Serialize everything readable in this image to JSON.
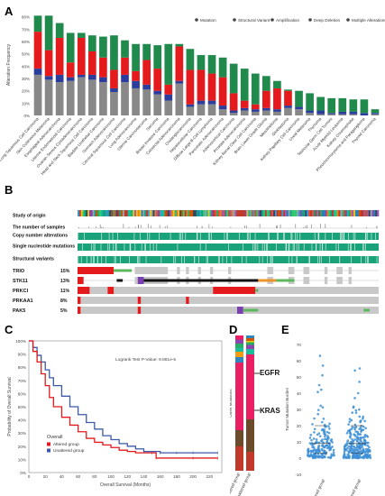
{
  "figure": {
    "panels": [
      "A",
      "B",
      "C",
      "D",
      "E"
    ]
  },
  "chart_data": [
    {
      "panel": "A",
      "type": "bar",
      "stacked": true,
      "ylabel": "Alteration Frequency",
      "yticks": [
        "0%",
        "10%",
        "20%",
        "30%",
        "40%",
        "50%",
        "60%",
        "70%",
        "80%"
      ],
      "ylim": [
        0,
        82
      ],
      "legend_position": "top-right",
      "legend": [
        {
          "name": "Mutation",
          "color": "#888888"
        },
        {
          "name": "Structural Variant",
          "color": "#8a6fa8"
        },
        {
          "name": "Amplification",
          "color": "#e41a1c"
        },
        {
          "name": "Deep Deletion",
          "color": "#2b3e9b"
        },
        {
          "name": "Multiple Alterations",
          "color": "#c9c9c9"
        }
      ],
      "colors": {
        "mutation": "#888888",
        "deletion": "#2b3e9b",
        "amplification": "#e41a1c",
        "multiple": "#1f8a4c"
      },
      "categories": [
        "Lung Squamous Cell Carcinoma",
        "Skin Cutaneous Melanoma",
        "Esophageal Adenocarcinoma",
        "Uterine Endometrioid Carcinoma",
        "Ovarian Serous Cystadenocarcinoma",
        "Head and Neck Squamous Cell Carcinoma",
        "Bladder Urothelial Carcinoma",
        "Stomach Adenocarcinoma",
        "Cervical Squamous Cell Carcinoma",
        "Lung Adenocarcinoma",
        "Uterine Carcinosarcoma",
        "Sarcoma",
        "Breast Invasive Carcinoma",
        "Colorectal Adenocarcinoma",
        "Cholangiocarcinoma",
        "Hepatocellular Carcinoma",
        "Diffuse Large B-Cell Lymphoma",
        "Pancreatic Adenocarcinoma",
        "Adrenocortical Carcinoma",
        "Prostate Adenocarcinoma",
        "Kidney Renal Clear Cell Carcinoma",
        "Brain Lower Grade Glioma",
        "Mesothelioma",
        "Glioblastoma",
        "Kidney Papillary Cell Carcinoma",
        "Uveal Melanoma",
        "Thymoma",
        "Testicular Germ Cell Tumors",
        "Acute Myeloid Leukemia",
        "Kidney Chromophobe",
        "Pheochromocytoma and Paraganglioma",
        "Thyroid Carcinoma"
      ],
      "series": [
        {
          "name": "Mutation",
          "values": [
            33,
            29,
            27,
            28,
            31,
            29,
            27,
            19,
            27,
            22,
            21,
            17,
            12,
            26,
            7,
            9,
            9,
            5,
            2,
            4,
            3,
            4,
            3,
            6,
            5,
            2,
            1,
            1,
            1,
            1,
            0,
            1
          ]
        },
        {
          "name": "Deep Deletion",
          "values": [
            5,
            3,
            6,
            3,
            2,
            4,
            4,
            3,
            6,
            6,
            4,
            3,
            5,
            2,
            2,
            3,
            3,
            3,
            2,
            2,
            2,
            2,
            2,
            2,
            2,
            2,
            3,
            1,
            2,
            2,
            2,
            1
          ]
        },
        {
          "name": "Amplification",
          "values": [
            30,
            21,
            30,
            12,
            30,
            19,
            16,
            15,
            14,
            8,
            20,
            18,
            8,
            28,
            28,
            25,
            22,
            23,
            14,
            6,
            4,
            14,
            17,
            12,
            0,
            0,
            0,
            0,
            0,
            0,
            0,
            0
          ]
        },
        {
          "name": "Multiple Alterations",
          "values": [
            13,
            28,
            12,
            24,
            4,
            13,
            17,
            28,
            14,
            22,
            13,
            19,
            33,
            2,
            17,
            12,
            15,
            16,
            24,
            26,
            25,
            12,
            6,
            1,
            13,
            14,
            11,
            12,
            11,
            10,
            11,
            3
          ]
        }
      ]
    },
    {
      "panel": "B",
      "type": "oncoprint",
      "tracks": [
        "Study of origin",
        "The number of samples",
        "Copy number alterations",
        "Single nucleotide mutations",
        "Structural variants"
      ],
      "genes": [
        {
          "name": "TRIO",
          "pct": "15%"
        },
        {
          "name": "STK11",
          "pct": "13%"
        },
        {
          "name": "PRKCI",
          "pct": "11%"
        },
        {
          "name": "PRKAA1",
          "pct": "8%"
        },
        {
          "name": "PAK5",
          "pct": "5%"
        }
      ],
      "colors": {
        "cna": "#1aa37a",
        "gray": "#c8c8c8",
        "amp": "#e41a1c",
        "mut": "#5cb85c",
        "trunc": "#111111",
        "fusion": "#7b3fb1",
        "orange": "#f0932b"
      }
    },
    {
      "panel": "C",
      "type": "line",
      "xlabel": "Overall Survival (Months)",
      "ylabel": "Probability of Overall Survival",
      "xticks": [
        "0",
        "20",
        "40",
        "60",
        "80",
        "100",
        "120",
        "140",
        "160",
        "180",
        "200",
        "220"
      ],
      "yticks": [
        "0%",
        "10%",
        "20%",
        "30%",
        "40%",
        "50%",
        "60%",
        "70%",
        "80%",
        "90%",
        "100%"
      ],
      "xlim": [
        0,
        235
      ],
      "ylim": [
        0,
        100
      ],
      "annotation": "Logrank Test P-Value: 9.861e-5",
      "legend_title": "Overall",
      "series": [
        {
          "name": "Altered group",
          "color": "#e41a1c",
          "x": [
            0,
            5,
            10,
            15,
            20,
            25,
            30,
            40,
            50,
            60,
            70,
            80,
            90,
            100,
            110,
            120,
            130,
            150,
            155,
            200,
            230
          ],
          "y": [
            100,
            92,
            84,
            75,
            66,
            57,
            50,
            42,
            36,
            31,
            26,
            23,
            21,
            19,
            17,
            16,
            15,
            15,
            11,
            11,
            11
          ]
        },
        {
          "name": "Unaltered group",
          "color": "#3c5aa8",
          "x": [
            0,
            5,
            10,
            15,
            20,
            25,
            30,
            40,
            50,
            60,
            70,
            80,
            90,
            100,
            110,
            120,
            130,
            140,
            160,
            180,
            200,
            230
          ],
          "y": [
            100,
            95,
            89,
            84,
            78,
            72,
            66,
            58,
            50,
            44,
            38,
            33,
            28,
            25,
            22,
            20,
            18,
            16,
            15,
            15,
            15,
            15
          ]
        }
      ]
    },
    {
      "panel": "D",
      "type": "bar",
      "stacked": true,
      "ylabel": "Other Mutations\nThe number of samples (%)",
      "categories": [
        "Altered group",
        "Unaltered group"
      ],
      "annotations": [
        "EGFR",
        "KRAS"
      ]
    },
    {
      "panel": "E",
      "type": "scatter",
      "ylabel": "Tumor Mutation Burden",
      "yticks": [
        "-10",
        "0",
        "10",
        "20",
        "30",
        "40",
        "50",
        "60",
        "70"
      ],
      "ylim": [
        -10,
        70
      ],
      "categories": [
        "Altered group",
        "Unaltered group"
      ],
      "color": "#3d8fd6"
    }
  ]
}
